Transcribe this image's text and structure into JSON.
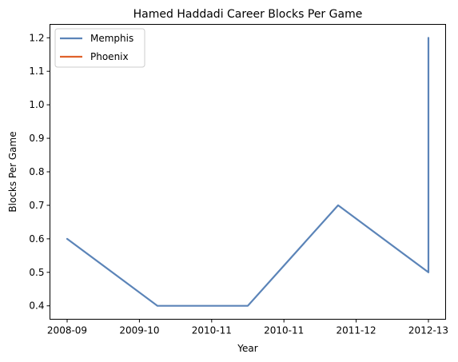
{
  "chart_data": {
    "type": "line",
    "title": "Hamed Haddadi Career Blocks Per Game",
    "xlabel": "Year",
    "ylabel": "Blocks Per Game",
    "x_ticks": [
      "2008-09",
      "2009-10",
      "2010-11",
      "2010-11",
      "2011-12",
      "2012-13"
    ],
    "ylim": [
      0.36,
      1.24
    ],
    "y_ticks": [
      0.4,
      0.5,
      0.6,
      0.7,
      0.8,
      0.9,
      1.0,
      1.1,
      1.2
    ],
    "grid": false,
    "legend_position": "top-left",
    "series": [
      {
        "name": "Memphis",
        "color": "#5b84b8",
        "points": [
          {
            "x": 0.0,
            "y": 0.6
          },
          {
            "x": 1.0,
            "y": 0.4
          },
          {
            "x": 2.0,
            "y": 0.4
          },
          {
            "x": 3.0,
            "y": 0.7
          },
          {
            "x": 4.0,
            "y": 0.5
          },
          {
            "x": 4.0,
            "y": 1.2
          }
        ]
      },
      {
        "name": "Phoenix",
        "color": "#e0622b",
        "points": []
      }
    ]
  }
}
